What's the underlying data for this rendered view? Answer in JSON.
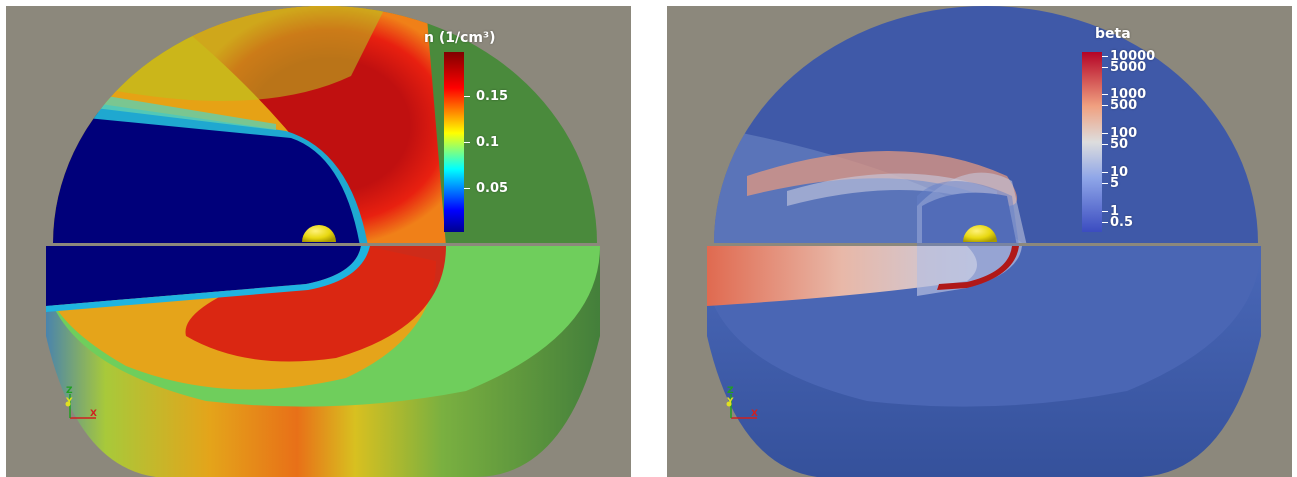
{
  "left_view": {
    "colorbar_title": "n (1/cm³)",
    "ticks": [
      "0.15",
      "0.1",
      "0.05"
    ],
    "tick_values": [
      0.15,
      0.1,
      0.05
    ],
    "range": [
      0.0,
      0.195
    ],
    "colormap": [
      "#00008f",
      "#0000ff",
      "#00ffff",
      "#ffff00",
      "#ff0000",
      "#800000"
    ],
    "background": "#8c887c"
  },
  "right_view": {
    "colorbar_title": "beta",
    "ticks": [
      "10000",
      "5000",
      "1000",
      "500",
      "100",
      "50",
      "10",
      "5",
      "1",
      "0.5"
    ],
    "tick_values": [
      10000,
      5000,
      1000,
      500,
      100,
      50,
      10,
      5,
      1,
      0.5
    ],
    "scale": "log",
    "range": [
      0.5,
      10000
    ],
    "colormap": [
      "#3b4cc0",
      "#dddddd",
      "#b40426"
    ],
    "background": "#8c887c"
  },
  "axes_triad": {
    "x": "X",
    "y": "Y",
    "z": "Z"
  }
}
